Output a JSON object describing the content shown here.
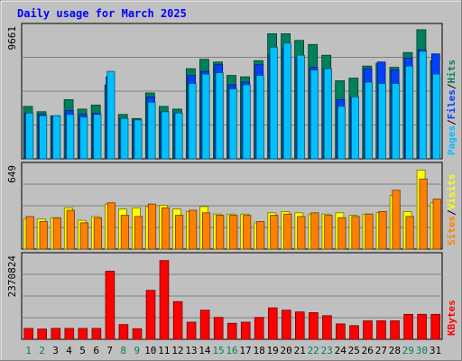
{
  "title": "Daily usage for March 2025",
  "colors": {
    "background": "#c0c0c0",
    "border": "#808080",
    "title": "#0000ff",
    "hits": "#00805c",
    "files": "#0040ff",
    "pages": "#00c0ff",
    "visits": "#ffff00",
    "sites": "#ff8000",
    "kbytes": "#ff0000",
    "weekend_label": "#00805c",
    "weekday_label": "#000000"
  },
  "chart_data": [
    {
      "type": "bar",
      "name": "hits-files-pages",
      "ymax_label": "9661",
      "ymax": 9661,
      "legend": [
        "Pages",
        "Files",
        "Hits"
      ],
      "categories": [
        "1",
        "2",
        "3",
        "4",
        "5",
        "6",
        "7",
        "8",
        "9",
        "10",
        "11",
        "12",
        "13",
        "14",
        "15",
        "16",
        "17",
        "18",
        "19",
        "20",
        "21",
        "22",
        "23",
        "24",
        "25",
        "26",
        "27",
        "28",
        "29",
        "30",
        "31"
      ],
      "weekend_days": [
        1,
        2,
        8,
        9,
        15,
        16,
        22,
        23,
        29,
        30
      ],
      "series": [
        {
          "name": "Hits",
          "values": [
            3900,
            3500,
            3200,
            4400,
            3700,
            4000,
            5500,
            3300,
            3000,
            4900,
            3900,
            3700,
            6700,
            7400,
            7200,
            6200,
            6100,
            7300,
            9300,
            9300,
            8800,
            8500,
            7700,
            5800,
            6000,
            6900,
            7100,
            6800,
            7900,
            9600,
            7300
          ]
        },
        {
          "name": "Files",
          "values": [
            3400,
            3300,
            3200,
            3600,
            3300,
            3400,
            6100,
            3000,
            2900,
            4600,
            3500,
            3400,
            6200,
            6500,
            7000,
            5500,
            5700,
            7000,
            7800,
            8200,
            7500,
            6800,
            6700,
            4400,
            4600,
            6700,
            7200,
            6600,
            7500,
            8100,
            7800
          ]
        },
        {
          "name": "Pages",
          "values": [
            3400,
            3200,
            3200,
            3300,
            3100,
            3300,
            6500,
            3000,
            2900,
            4200,
            3500,
            3400,
            5600,
            6300,
            6400,
            5200,
            5500,
            6200,
            8300,
            8600,
            7700,
            6600,
            6700,
            3900,
            4600,
            5700,
            5600,
            5600,
            6900,
            8000,
            6300
          ]
        }
      ]
    },
    {
      "type": "bar",
      "name": "visits-sites",
      "ymax_label": "649",
      "ymax": 649,
      "legend": [
        "Sites",
        "Visits"
      ],
      "categories": [
        "1",
        "2",
        "3",
        "4",
        "5",
        "6",
        "7",
        "8",
        "9",
        "10",
        "11",
        "12",
        "13",
        "14",
        "15",
        "16",
        "17",
        "18",
        "19",
        "20",
        "21",
        "22",
        "23",
        "24",
        "25",
        "26",
        "27",
        "28",
        "29",
        "30",
        "31"
      ],
      "series": [
        {
          "name": "Visits",
          "values": [
            240,
            240,
            250,
            330,
            230,
            260,
            360,
            320,
            330,
            340,
            350,
            320,
            300,
            340,
            280,
            280,
            280,
            210,
            290,
            300,
            290,
            280,
            280,
            290,
            270,
            280,
            290,
            430,
            300,
            630,
            370
          ]
        },
        {
          "name": "Sites",
          "values": [
            260,
            220,
            250,
            310,
            210,
            250,
            370,
            270,
            260,
            360,
            330,
            270,
            310,
            290,
            270,
            270,
            270,
            220,
            270,
            280,
            260,
            290,
            270,
            250,
            260,
            280,
            300,
            470,
            260,
            560,
            400
          ]
        }
      ]
    },
    {
      "type": "bar",
      "name": "kbytes",
      "ymax_label": "2370824",
      "ymax": 2370824,
      "legend": [
        "KBytes"
      ],
      "categories": [
        "1",
        "2",
        "3",
        "4",
        "5",
        "6",
        "7",
        "8",
        "9",
        "10",
        "11",
        "12",
        "13",
        "14",
        "15",
        "16",
        "17",
        "18",
        "19",
        "20",
        "21",
        "22",
        "23",
        "24",
        "25",
        "26",
        "27",
        "28",
        "29",
        "30",
        "31"
      ],
      "series": [
        {
          "name": "KBytes",
          "values": [
            320000,
            300000,
            320000,
            320000,
            320000,
            320000,
            1990000,
            430000,
            310000,
            1430000,
            2300000,
            1100000,
            500000,
            850000,
            640000,
            470000,
            500000,
            640000,
            920000,
            850000,
            800000,
            780000,
            690000,
            450000,
            400000,
            540000,
            540000,
            540000,
            730000,
            730000,
            730000
          ]
        }
      ]
    }
  ]
}
